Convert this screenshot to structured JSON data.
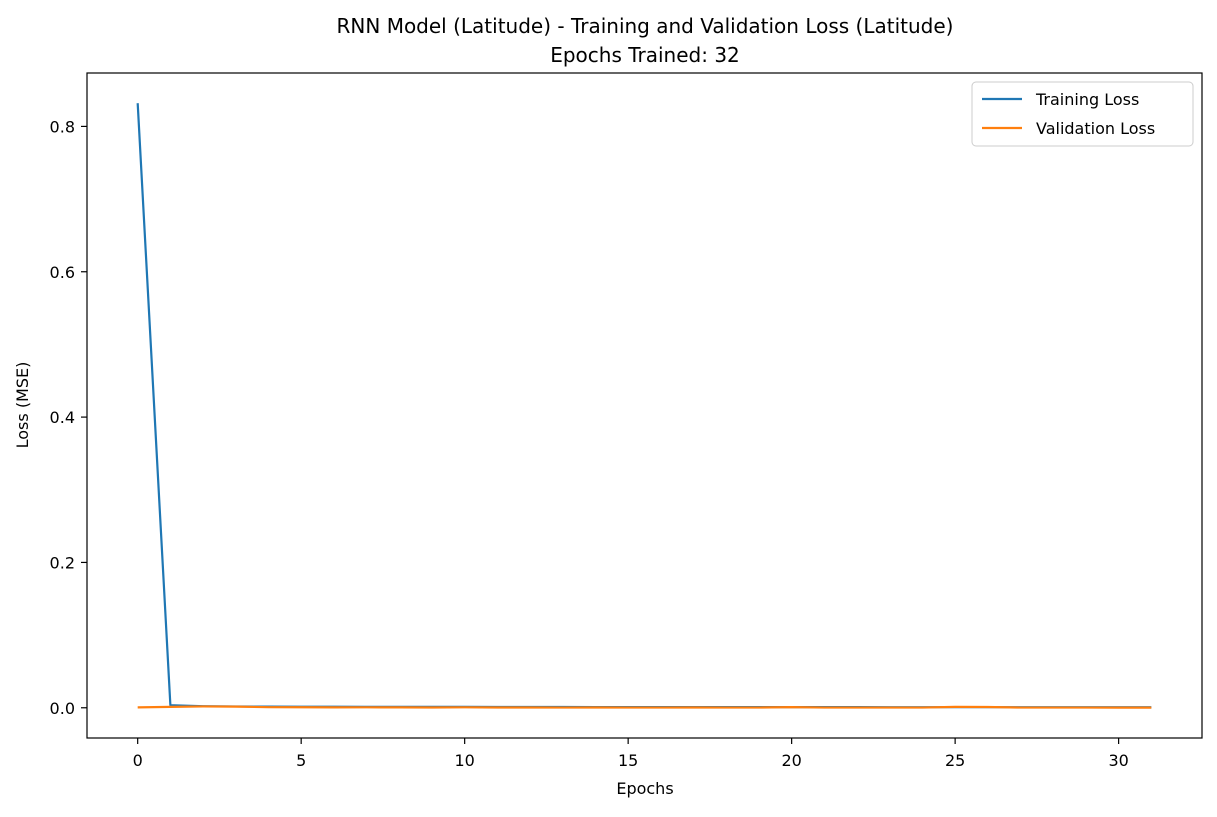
{
  "chart_data": {
    "type": "line",
    "title": "RNN Model (Latitude) - Training and Validation Loss (Latitude)",
    "subtitle": "Epochs Trained: 32",
    "xlabel": "Epochs",
    "ylabel": "Loss (MSE)",
    "xlim": [
      -1.55,
      32.55
    ],
    "ylim": [
      -0.0416,
      0.8735
    ],
    "x_ticks": [
      0,
      5,
      10,
      15,
      20,
      25,
      30
    ],
    "x_tick_labels": [
      "0",
      "5",
      "10",
      "15",
      "20",
      "25",
      "30"
    ],
    "y_ticks": [
      0.0,
      0.2,
      0.4,
      0.6,
      0.8
    ],
    "y_tick_labels": [
      "0.0",
      "0.2",
      "0.4",
      "0.6",
      "0.8"
    ],
    "grid": false,
    "legend_position": "top-right",
    "x": [
      0,
      1,
      2,
      3,
      4,
      5,
      6,
      7,
      8,
      9,
      10,
      11,
      12,
      13,
      14,
      15,
      16,
      17,
      18,
      19,
      20,
      21,
      22,
      23,
      24,
      25,
      26,
      27,
      28,
      29,
      30,
      31
    ],
    "series": [
      {
        "name": "Training Loss",
        "color": "#1f77b4",
        "values": [
          0.832,
          0.0035,
          0.0022,
          0.0018,
          0.0016,
          0.0015,
          0.0014,
          0.0013,
          0.0013,
          0.0012,
          0.0012,
          0.0011,
          0.0011,
          0.0011,
          0.001,
          0.001,
          0.001,
          0.001,
          0.0009,
          0.0009,
          0.0009,
          0.0009,
          0.0009,
          0.0008,
          0.0008,
          0.0008,
          0.0008,
          0.0008,
          0.0008,
          0.0008,
          0.0007,
          0.0007
        ]
      },
      {
        "name": "Validation Loss",
        "color": "#ff7f0e",
        "values": [
          0.0005,
          0.0012,
          0.0018,
          0.0016,
          0.0008,
          0.0007,
          0.0005,
          0.0006,
          0.0005,
          0.0004,
          0.0006,
          0.0004,
          0.0004,
          0.0003,
          0.0004,
          0.0003,
          0.0003,
          0.0004,
          0.0003,
          0.0003,
          0.0009,
          0.0003,
          0.0003,
          0.0003,
          0.0003,
          0.0012,
          0.0011,
          0.0003,
          0.0003,
          0.0003,
          0.0002,
          0.0002
        ]
      }
    ]
  }
}
